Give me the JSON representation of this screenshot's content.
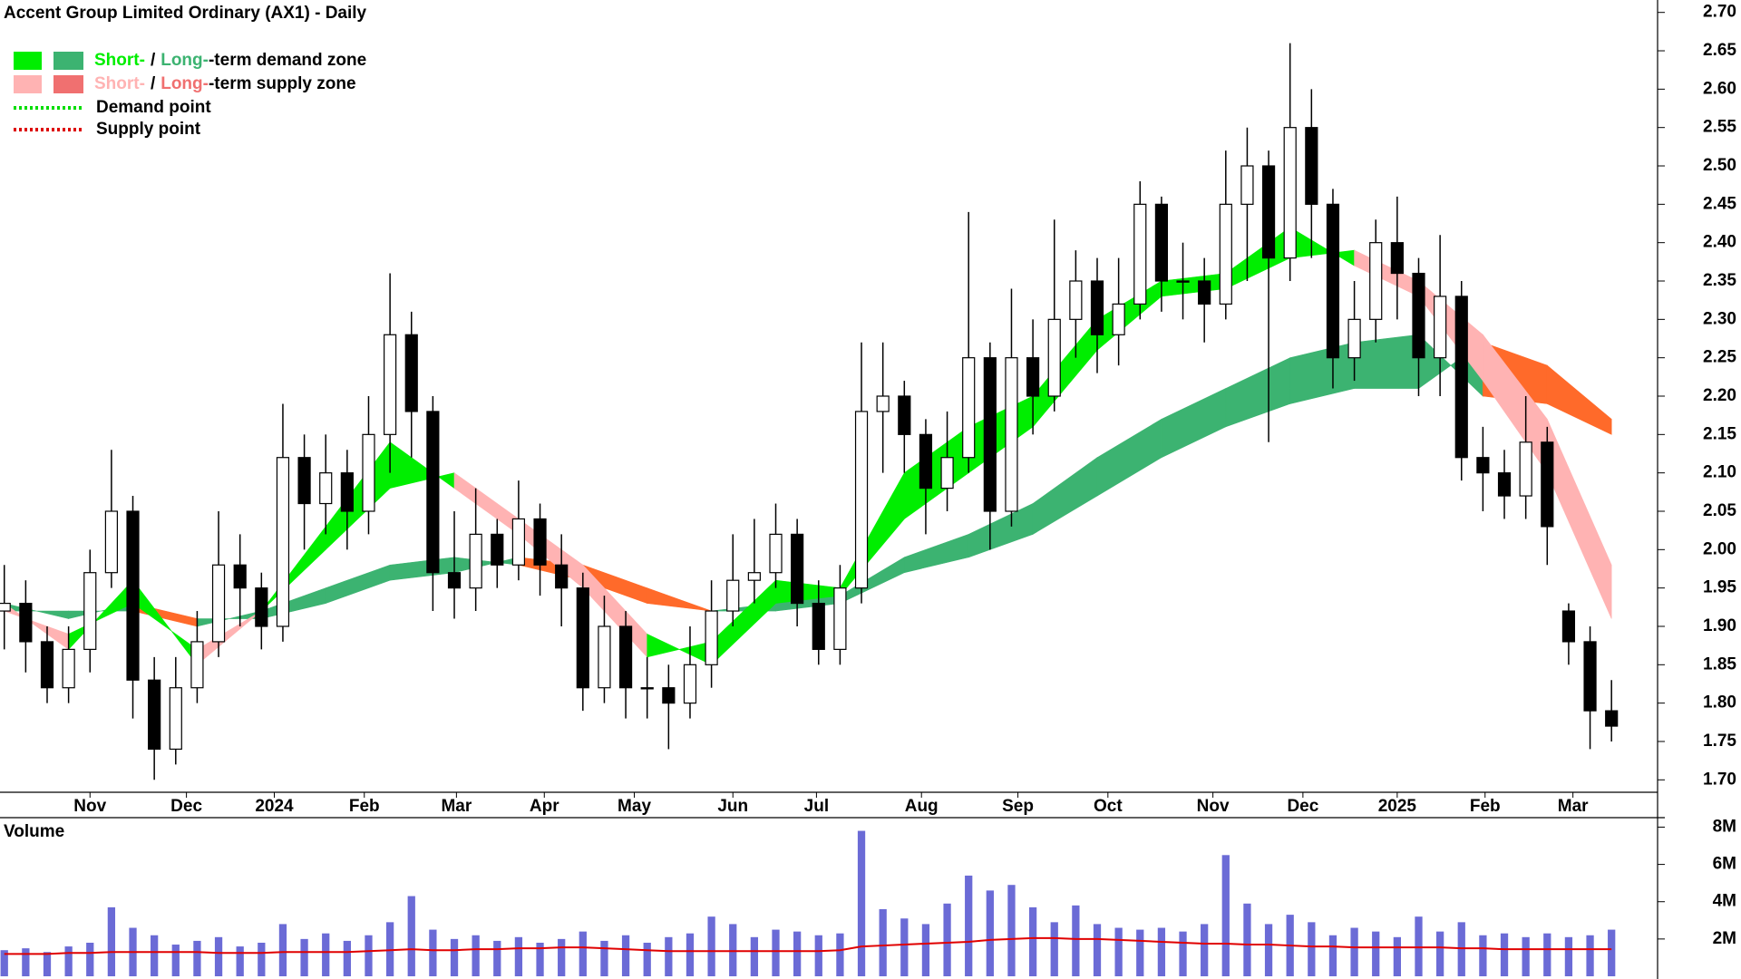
{
  "chart_data": {
    "type": "candlestick",
    "title": "Accent Group Limited Ordinary (AX1) - Daily",
    "xlim": [
      -0.2,
      77.15
    ],
    "xticks": [
      {
        "value": 4,
        "label": "Nov"
      },
      {
        "value": 8.5,
        "label": "Dec"
      },
      {
        "value": 12.6,
        "label": "2024"
      },
      {
        "value": 16.8,
        "label": "Feb"
      },
      {
        "value": 21.1,
        "label": "Mar"
      },
      {
        "value": 25.2,
        "label": "Apr"
      },
      {
        "value": 29.4,
        "label": "May"
      },
      {
        "value": 34,
        "label": "Jun"
      },
      {
        "value": 37.9,
        "label": "Jul"
      },
      {
        "value": 42.8,
        "label": "Aug"
      },
      {
        "value": 47.3,
        "label": "Sep"
      },
      {
        "value": 51.5,
        "label": "Oct"
      },
      {
        "value": 56.4,
        "label": "Nov"
      },
      {
        "value": 60.6,
        "label": "Dec"
      },
      {
        "value": 65,
        "label": "2025"
      },
      {
        "value": 69.1,
        "label": "Feb"
      },
      {
        "value": 73.2,
        "label": "Mar"
      }
    ],
    "ylim": [
      1.685,
      2.715
    ],
    "yticks": [
      {
        "value": 1.7,
        "label": "1.70"
      },
      1.75,
      {
        "value": 1.8,
        "label": "1.80"
      },
      1.85,
      {
        "value": 1.9,
        "label": "1.90"
      },
      1.95,
      {
        "value": 2.0,
        "label": "2.00"
      },
      2.05,
      {
        "value": 2.1,
        "label": "2.10"
      },
      2.15,
      {
        "value": 2.2,
        "label": "2.20"
      },
      2.25,
      {
        "value": 2.3,
        "label": "2.30"
      },
      2.35,
      {
        "value": 2.4,
        "label": "2.40"
      },
      2.45,
      {
        "value": 2.5,
        "label": "2.50"
      },
      2.55,
      {
        "value": 2.6,
        "label": "2.60"
      },
      2.65,
      {
        "value": 2.7,
        "label": "2.70"
      }
    ],
    "up_color": "#ffffff",
    "down_color": "#000000",
    "open": [
      1.92,
      1.93,
      1.88,
      1.82,
      1.87,
      1.97,
      2.05,
      1.83,
      1.74,
      1.82,
      1.88,
      1.98,
      1.95,
      1.9,
      2.12,
      2.06,
      2.1,
      2.05,
      2.15,
      2.28,
      2.18,
      1.97,
      1.95,
      2.02,
      1.98,
      2.04,
      1.98,
      1.95,
      1.82,
      1.9,
      1.82,
      1.82,
      1.8,
      1.85,
      1.92,
      1.96,
      1.97,
      2.02,
      1.93,
      1.87,
      1.95,
      2.18,
      2.2,
      2.15,
      2.08,
      2.12,
      2.25,
      2.05,
      2.25,
      2.2,
      2.3,
      2.35,
      2.28,
      2.32,
      2.45,
      2.35,
      2.35,
      2.32,
      2.45,
      2.5,
      2.38,
      2.55,
      2.45,
      2.25,
      2.3,
      2.4,
      2.36,
      2.25,
      2.33,
      2.12,
      2.1,
      2.07,
      2.14,
      1.92,
      1.88,
      1.79
    ],
    "high": [
      1.98,
      1.96,
      1.9,
      1.9,
      2.0,
      2.13,
      2.07,
      1.86,
      1.86,
      1.92,
      2.05,
      2.02,
      1.97,
      2.19,
      2.15,
      2.15,
      2.13,
      2.2,
      2.36,
      2.31,
      2.2,
      2.05,
      2.08,
      2.04,
      2.09,
      2.06,
      2.02,
      1.97,
      1.94,
      1.92,
      1.86,
      1.85,
      1.9,
      1.96,
      2.02,
      2.04,
      2.06,
      2.04,
      1.96,
      1.98,
      2.27,
      2.27,
      2.22,
      2.17,
      2.18,
      2.44,
      2.27,
      2.34,
      2.3,
      2.43,
      2.39,
      2.38,
      2.38,
      2.48,
      2.46,
      2.4,
      2.38,
      2.52,
      2.55,
      2.52,
      2.66,
      2.6,
      2.47,
      2.35,
      2.43,
      2.46,
      2.38,
      2.41,
      2.35,
      2.16,
      2.13,
      2.2,
      2.16,
      1.93,
      1.9,
      1.83
    ],
    "low": [
      1.87,
      1.84,
      1.8,
      1.8,
      1.84,
      1.95,
      1.78,
      1.7,
      1.72,
      1.8,
      1.86,
      1.9,
      1.87,
      1.88,
      2.0,
      2.02,
      2.0,
      2.02,
      2.1,
      2.12,
      1.92,
      1.91,
      1.92,
      1.95,
      1.96,
      1.94,
      1.9,
      1.79,
      1.8,
      1.78,
      1.78,
      1.74,
      1.78,
      1.82,
      1.9,
      1.93,
      1.95,
      1.9,
      1.85,
      1.85,
      1.93,
      2.1,
      2.1,
      2.02,
      2.05,
      2.1,
      2.0,
      2.03,
      2.15,
      2.18,
      2.25,
      2.23,
      2.24,
      2.3,
      2.31,
      2.3,
      2.27,
      2.3,
      2.35,
      2.14,
      2.35,
      2.38,
      2.21,
      2.22,
      2.27,
      2.3,
      2.2,
      2.2,
      2.09,
      2.05,
      2.04,
      2.04,
      1.98,
      1.85,
      1.74,
      1.75
    ],
    "close": [
      1.93,
      1.88,
      1.82,
      1.87,
      1.97,
      2.05,
      1.83,
      1.74,
      1.82,
      1.88,
      1.98,
      1.95,
      1.9,
      2.12,
      2.06,
      2.1,
      2.05,
      2.15,
      2.28,
      2.18,
      1.97,
      1.95,
      2.02,
      1.98,
      2.04,
      1.98,
      1.95,
      1.82,
      1.9,
      1.82,
      1.82,
      1.8,
      1.85,
      1.92,
      1.96,
      1.97,
      2.02,
      1.93,
      1.87,
      1.95,
      2.18,
      2.2,
      2.15,
      2.08,
      2.12,
      2.25,
      2.05,
      2.25,
      2.2,
      2.3,
      2.35,
      2.28,
      2.32,
      2.45,
      2.35,
      2.35,
      2.32,
      2.45,
      2.5,
      2.38,
      2.55,
      2.45,
      2.25,
      2.3,
      2.4,
      2.36,
      2.25,
      2.33,
      2.12,
      2.1,
      2.07,
      2.14,
      2.03,
      1.88,
      1.79,
      1.77
    ],
    "zones": {
      "x": [
        0,
        3,
        6,
        9,
        12,
        15,
        18,
        21,
        24,
        27,
        30,
        33,
        36,
        39,
        42,
        45,
        48,
        51,
        54,
        57,
        60,
        63,
        66,
        69,
        72,
        75
      ],
      "short_fast": [
        1.93,
        1.87,
        1.96,
        1.85,
        1.92,
        2.03,
        2.14,
        2.08,
        2.02,
        1.95,
        1.86,
        1.88,
        1.96,
        1.95,
        2.1,
        2.16,
        2.2,
        2.3,
        2.35,
        2.36,
        2.42,
        2.37,
        2.33,
        2.22,
        2.1,
        1.91
      ],
      "short_slow": [
        1.92,
        1.89,
        1.93,
        1.87,
        1.92,
        2.0,
        2.08,
        2.1,
        2.04,
        1.98,
        1.89,
        1.85,
        1.93,
        1.94,
        2.04,
        2.1,
        2.16,
        2.26,
        2.33,
        2.34,
        2.38,
        2.39,
        2.35,
        2.28,
        2.17,
        1.98
      ],
      "long_fast": [
        1.92,
        1.92,
        1.92,
        1.9,
        1.92,
        1.95,
        1.98,
        1.99,
        1.98,
        1.96,
        1.93,
        1.92,
        1.93,
        1.94,
        1.99,
        2.02,
        2.06,
        2.12,
        2.17,
        2.21,
        2.25,
        2.27,
        2.28,
        2.2,
        2.19,
        2.15
      ],
      "long_slow": [
        1.93,
        1.91,
        1.93,
        1.91,
        1.91,
        1.93,
        1.96,
        1.97,
        1.99,
        1.98,
        1.95,
        1.92,
        1.92,
        1.93,
        1.97,
        1.99,
        2.02,
        2.07,
        2.12,
        2.16,
        2.19,
        2.21,
        2.21,
        2.27,
        2.24,
        2.17
      ],
      "short_demand_color": "#00ee00",
      "long_demand_color": "#3cb371",
      "short_supply_color": "#ffb3b3",
      "long_supply_color": "#ff6a2a"
    },
    "legend": [
      {
        "short": "Short-",
        "sep": "/",
        "long": "Long-",
        "rest": "-term demand zone",
        "short_color": "#00ee00",
        "long_color": "#3cb371"
      },
      {
        "short": "Short-",
        "sep": "/",
        "long": "Long-",
        "rest": "-term supply zone",
        "short_color": "#ffb3b3",
        "long_color": "#f07070"
      },
      {
        "label": "Demand point",
        "color": "#00dd00"
      },
      {
        "label": "Supply point",
        "color": "#dd0000"
      }
    ],
    "volume": {
      "label": "Volume",
      "color": "#6b6bd6",
      "ma_color": "#e00000",
      "ylim": [
        0,
        8800000
      ],
      "yticks": [
        {
          "value": 2000000,
          "label": "2M"
        },
        {
          "value": 4000000,
          "label": "4M"
        },
        {
          "value": 6000000,
          "label": "6M"
        },
        {
          "value": 8000000,
          "label": "8M"
        }
      ],
      "values": [
        1400000,
        1500000,
        1300000,
        1600000,
        1800000,
        3700000,
        2600000,
        2200000,
        1700000,
        1900000,
        2100000,
        1600000,
        1800000,
        2800000,
        2000000,
        2300000,
        1900000,
        2200000,
        2900000,
        4300000,
        2500000,
        2000000,
        2200000,
        1900000,
        2100000,
        1800000,
        2000000,
        2400000,
        1900000,
        2200000,
        1800000,
        2100000,
        2300000,
        3200000,
        2800000,
        2100000,
        2500000,
        2400000,
        2200000,
        2300000,
        7800000,
        3600000,
        3100000,
        2800000,
        3900000,
        5400000,
        4600000,
        4900000,
        3700000,
        2900000,
        3800000,
        2800000,
        2600000,
        2500000,
        2600000,
        2400000,
        2800000,
        6500000,
        3900000,
        2800000,
        3300000,
        2900000,
        2200000,
        2600000,
        2400000,
        2100000,
        3200000,
        2400000,
        2900000,
        2200000,
        2300000,
        2100000,
        2300000,
        2100000,
        2200000,
        2500000
      ],
      "ma": [
        1200000,
        1200000,
        1200000,
        1250000,
        1250000,
        1300000,
        1300000,
        1300000,
        1300000,
        1300000,
        1250000,
        1250000,
        1250000,
        1300000,
        1300000,
        1300000,
        1300000,
        1350000,
        1400000,
        1450000,
        1400000,
        1400000,
        1450000,
        1450000,
        1500000,
        1500000,
        1550000,
        1550000,
        1500000,
        1450000,
        1400000,
        1350000,
        1350000,
        1350000,
        1350000,
        1350000,
        1350000,
        1350000,
        1350000,
        1400000,
        1600000,
        1650000,
        1700000,
        1750000,
        1800000,
        1850000,
        1950000,
        2000000,
        2050000,
        2050000,
        2000000,
        2000000,
        1950000,
        1900000,
        1850000,
        1800000,
        1750000,
        1750000,
        1700000,
        1700000,
        1650000,
        1600000,
        1600000,
        1550000,
        1550000,
        1550000,
        1550000,
        1550000,
        1500000,
        1500000,
        1450000,
        1450000,
        1450000,
        1450000,
        1450000,
        1450000
      ]
    }
  }
}
